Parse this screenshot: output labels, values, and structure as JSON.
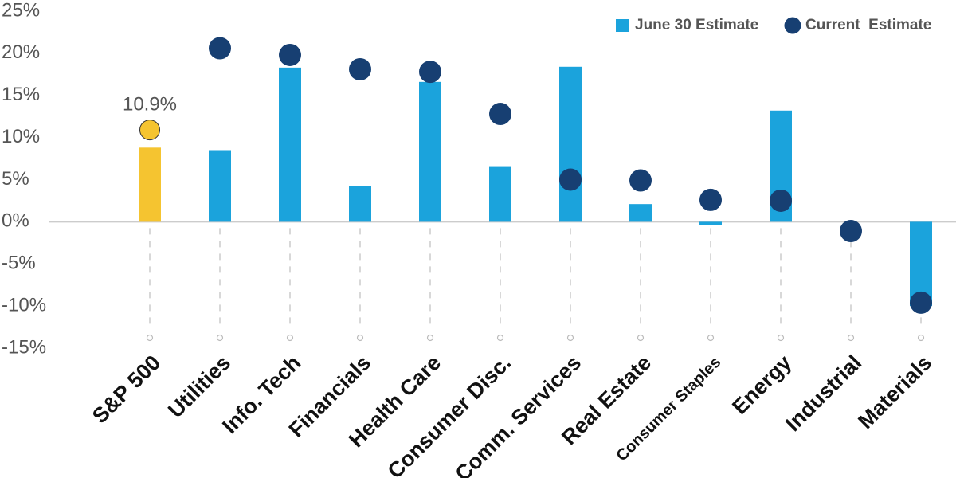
{
  "chart_data": {
    "type": "bar-dot",
    "categories": [
      "S&P 500",
      "Utilities",
      "Info. Tech",
      "Financials",
      "Health Care",
      "Consumer Disc.",
      "Comm. Services",
      "Real Estate",
      "Consumer Staples",
      "Energy",
      "Industrial",
      "Materials"
    ],
    "series": [
      {
        "name": "June 30 Estimate",
        "mark": "bar",
        "color": "#1ba3dc",
        "colors": [
          "#f5c430",
          "#1ba3dc",
          "#1ba3dc",
          "#1ba3dc",
          "#1ba3dc",
          "#1ba3dc",
          "#1ba3dc",
          "#1ba3dc",
          "#1ba3dc",
          "#1ba3dc",
          "#1ba3dc",
          "#1ba3dc"
        ],
        "values": [
          8.8,
          8.5,
          18.3,
          4.2,
          16.6,
          6.6,
          18.4,
          2.1,
          -0.4,
          13.2,
          0,
          -10
        ]
      },
      {
        "name": "Current  Estimate",
        "mark": "dot",
        "color": "#173f72",
        "colors": [
          "#f5c430",
          "#173f72",
          "#173f72",
          "#173f72",
          "#173f72",
          "#173f72",
          "#173f72",
          "#173f72",
          "#173f72",
          "#173f72",
          "#173f72",
          "#173f72"
        ],
        "values": [
          10.9,
          20.6,
          19.8,
          18.1,
          17.8,
          12.8,
          5.0,
          4.9,
          2.6,
          2.5,
          -1.1,
          -9.6
        ],
        "value_labels": [
          "10.9%",
          null,
          null,
          null,
          null,
          null,
          null,
          null,
          null,
          null,
          null,
          null
        ]
      }
    ],
    "ylim": [
      -15,
      25
    ],
    "yticks": [
      {
        "value": -15,
        "label": "-15%"
      },
      {
        "value": -10,
        "label": "-10%"
      },
      {
        "value": -5,
        "label": "-5%"
      },
      {
        "value": 0,
        "label": "0%"
      },
      {
        "value": 5,
        "label": "5%"
      },
      {
        "value": 10,
        "label": "10%"
      },
      {
        "value": 15,
        "label": "15%"
      },
      {
        "value": 20,
        "label": "20%"
      },
      {
        "value": 25,
        "label": "25%"
      }
    ],
    "legend": "top-right"
  }
}
